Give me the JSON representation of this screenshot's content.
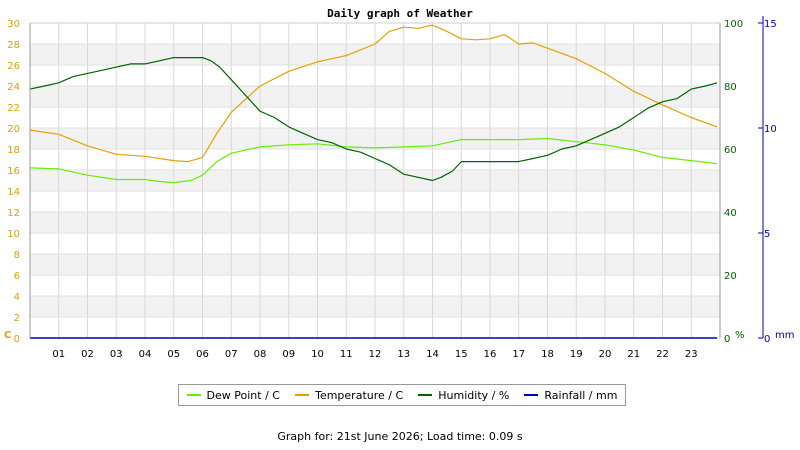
{
  "chart_data": {
    "type": "line",
    "title": "Daily graph of Weather",
    "footer": "Graph for: 21st June 2026; Load time: 0.09 s",
    "x_ticks": [
      "01",
      "02",
      "03",
      "04",
      "05",
      "06",
      "07",
      "08",
      "09",
      "10",
      "11",
      "12",
      "13",
      "14",
      "15",
      "16",
      "17",
      "18",
      "19",
      "20",
      "21",
      "22",
      "23"
    ],
    "xlim": [
      0,
      24
    ],
    "grid": true,
    "legend_position": "bottom",
    "axes": {
      "left": {
        "unit": "C",
        "range": [
          0,
          30
        ],
        "ticks": [
          0,
          2,
          4,
          6,
          8,
          10,
          12,
          14,
          16,
          18,
          20,
          22,
          24,
          26,
          28,
          30
        ],
        "color": "#e0a000"
      },
      "right1": {
        "unit": "%",
        "range": [
          0,
          100
        ],
        "ticks": [
          0,
          20,
          40,
          60,
          80,
          100
        ],
        "color": "#006400"
      },
      "right2": {
        "unit": "mm",
        "range": [
          0,
          15
        ],
        "ticks": [
          0,
          5,
          10,
          15
        ],
        "color": "#0000aa"
      }
    },
    "series": [
      {
        "name": "Dew Point / C",
        "color": "#66ee00",
        "axis": "left",
        "x": [
          0,
          1,
          2,
          3,
          4,
          4.5,
          5,
          5.6,
          6,
          6.5,
          7,
          8,
          9,
          10,
          11,
          12,
          13,
          14,
          15,
          16,
          17,
          18,
          19,
          20,
          21,
          22,
          23,
          23.9
        ],
        "y": [
          16.2,
          16.1,
          15.5,
          15.1,
          15.1,
          14.9,
          14.8,
          15.0,
          15.5,
          16.8,
          17.6,
          18.2,
          18.4,
          18.5,
          18.2,
          18.1,
          18.2,
          18.3,
          18.9,
          18.9,
          18.9,
          19.0,
          18.7,
          18.4,
          17.9,
          17.2,
          16.9,
          16.6
        ]
      },
      {
        "name": "Temperature / C",
        "color": "#e8a000",
        "axis": "left",
        "x": [
          0,
          1,
          2,
          3,
          4,
          5,
          5.5,
          6,
          6.5,
          7,
          8,
          9,
          10,
          11,
          12,
          12.5,
          13,
          13.5,
          14,
          14.5,
          15,
          15.5,
          16,
          16.5,
          17,
          17.5,
          18,
          19,
          20,
          21,
          22,
          23,
          23.9
        ],
        "y": [
          19.8,
          19.4,
          18.3,
          17.5,
          17.3,
          16.9,
          16.8,
          17.2,
          19.5,
          21.5,
          24.0,
          25.4,
          26.3,
          26.9,
          28.0,
          29.2,
          29.6,
          29.5,
          29.8,
          29.2,
          28.5,
          28.4,
          28.5,
          28.9,
          28.0,
          28.1,
          27.6,
          26.6,
          25.2,
          23.5,
          22.2,
          21.0,
          20.1
        ]
      },
      {
        "name": "Humidity / %",
        "color": "#006400",
        "axis": "right1",
        "x": [
          0,
          0.5,
          1,
          1.5,
          2,
          2.5,
          3,
          3.5,
          4,
          4.5,
          5,
          5.5,
          6,
          6.3,
          6.6,
          7,
          7.5,
          8,
          8.5,
          9,
          9.5,
          10,
          10.5,
          11,
          11.5,
          12,
          12.5,
          13,
          13.5,
          14,
          14.3,
          14.7,
          15,
          16,
          17,
          17.5,
          18,
          18.5,
          19,
          19.5,
          20,
          20.5,
          21,
          21.5,
          22,
          22.5,
          23,
          23.5,
          23.9
        ],
        "y": [
          79,
          80,
          81,
          83,
          84,
          85,
          86,
          87,
          87,
          88,
          89,
          89,
          89,
          88,
          86,
          82,
          77,
          72,
          70,
          67,
          65,
          63,
          62,
          60,
          59,
          57,
          55,
          52,
          51,
          50,
          51,
          53,
          56,
          56,
          56,
          57,
          58,
          60,
          61,
          63,
          65,
          67,
          70,
          73,
          75,
          76,
          79,
          80,
          81
        ]
      },
      {
        "name": "Rainfall / mm",
        "color": "#0000aa",
        "axis": "right2",
        "x": [
          0,
          23.9
        ],
        "y": [
          0,
          0
        ]
      }
    ]
  }
}
